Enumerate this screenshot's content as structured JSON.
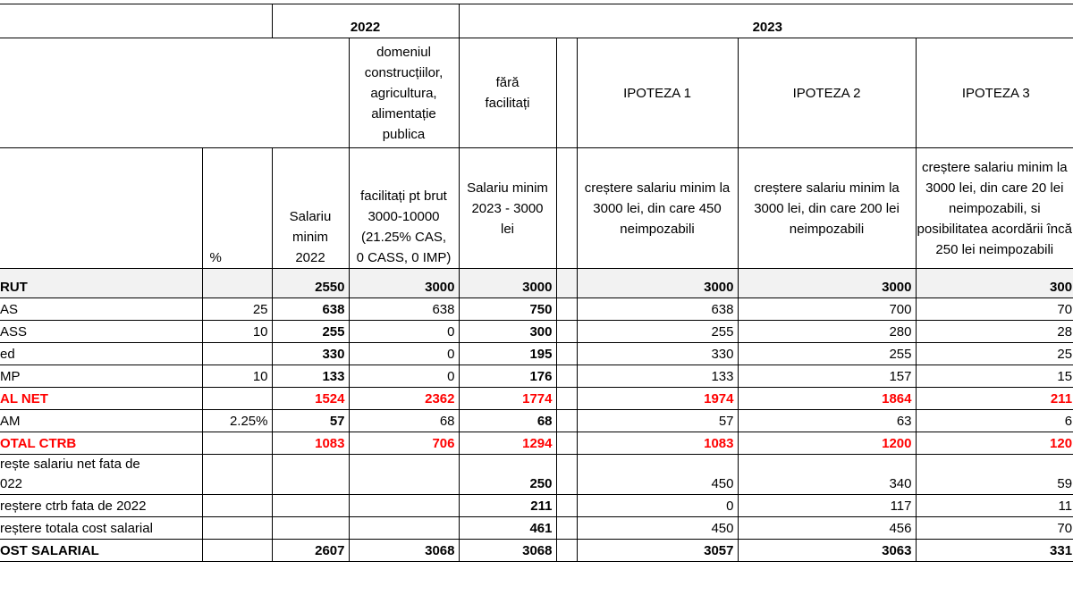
{
  "header_row1": [
    "2022",
    "2023"
  ],
  "header_row2": [
    "domeniul construcțiilor, agricultura, alimentație publica",
    "fără facilitați",
    "IPOTEZA 1",
    "IPOTEZA 2",
    "IPOTEZA 3"
  ],
  "header_row3": [
    "%",
    "Salariu minim 2022",
    "facilitați pt brut 3000-10000 (21.25% CAS, 0 CASS, 0 IMP)",
    "Salariu minim 2023 - 3000 lei",
    "creștere salariu minim la 3000 lei, din care 450 neimpozabili",
    "creștere salariu minim la 3000 lei, din care 200 lei neimpozabili",
    "creștere salariu minim la 3000 lei, din care 20 lei neimpozabili, si posibilitatea acordării încă 250 lei neimpozabili"
  ],
  "rows": [
    {
      "label": "RUT",
      "pct": null,
      "values": [
        2550,
        3000,
        3000,
        3000,
        3000,
        300
      ],
      "bold": true,
      "shade": "#f2f2f2"
    },
    {
      "label": "AS",
      "pct": 25,
      "values": [
        638,
        638,
        750,
        638,
        700,
        70
      ]
    },
    {
      "label": "ASS",
      "pct": 10,
      "values": [
        255,
        0,
        300,
        255,
        280,
        28
      ]
    },
    {
      "label": "ed",
      "pct": null,
      "values": [
        330,
        0,
        195,
        330,
        255,
        25
      ]
    },
    {
      "label": "MP",
      "pct": 10,
      "values": [
        133,
        0,
        176,
        133,
        157,
        15
      ]
    },
    {
      "label": "AL NET",
      "pct": null,
      "values": [
        1524,
        2362,
        1774,
        1974,
        1864,
        211
      ],
      "bold": true,
      "color": "#ff0000"
    },
    {
      "label": "AM",
      "pct": "2.25%",
      "values": [
        57,
        68,
        68,
        57,
        63,
        6
      ]
    },
    {
      "label": "OTAL CTRB",
      "pct": null,
      "values": [
        1083,
        706,
        1294,
        1083,
        1200,
        120
      ],
      "bold": true,
      "color": "#ff0000"
    },
    {
      "label": "rește salariu net fata de\n022",
      "pct": null,
      "values": [
        null,
        null,
        250,
        450,
        340,
        59
      ]
    },
    {
      "label": "reștere ctrb fata de 2022",
      "pct": null,
      "values": [
        null,
        null,
        211,
        0,
        117,
        11
      ]
    },
    {
      "label": "reștere totala cost salarial",
      "pct": null,
      "values": [
        null,
        null,
        461,
        450,
        456,
        70
      ]
    },
    {
      "label": "OST SALARIAL",
      "pct": null,
      "values": [
        2607,
        3068,
        3068,
        3057,
        3063,
        331
      ],
      "bold": true
    }
  ]
}
